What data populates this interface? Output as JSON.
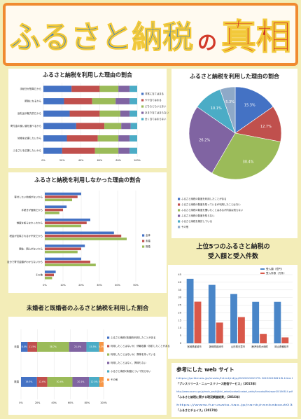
{
  "title": {
    "main": "ふるさと納税",
    "particle": "の",
    "emphasis": "真相"
  },
  "chart_data": [
    {
      "type": "stacked_barh",
      "title": "ふるさと納税を利用した理由の割合",
      "categories": [
        "手続きが簡単だから",
        "節税になるから",
        "返礼品が魅力的だから",
        "寄付金の使い道を選べるから",
        "地域を応援したいから",
        "ふるさとを応援したいから"
      ],
      "series": [
        {
          "name": "非常に当てはまる",
          "color": "#4472c4",
          "values": [
            30,
            22,
            28,
            35,
            25,
            20
          ]
        },
        {
          "name": "やや当てはまる",
          "color": "#c0504d",
          "values": [
            30,
            30,
            32,
            30,
            33,
            35
          ]
        },
        {
          "name": "どちらともいえない",
          "color": "#9bbb59",
          "values": [
            20,
            25,
            22,
            18,
            22,
            25
          ]
        },
        {
          "name": "あまり当てはまらない",
          "color": "#8064a2",
          "values": [
            12,
            15,
            10,
            10,
            12,
            12
          ]
        },
        {
          "name": "全く当てはまらない",
          "color": "#4bacc6",
          "values": [
            8,
            8,
            8,
            7,
            8,
            8
          ]
        }
      ],
      "xlim": [
        0,
        100
      ],
      "xticks": [
        {
          "value": 0,
          "label": "0%"
        },
        {
          "value": 20,
          "label": "20%"
        },
        {
          "value": 40,
          "label": "40%"
        },
        {
          "value": 60,
          "label": "60%"
        },
        {
          "value": 80,
          "label": "80%"
        },
        {
          "value": 100,
          "label": "100%"
        }
      ],
      "grid": true
    },
    {
      "type": "pie",
      "title": "ふるさと納税を利用した理由の割合",
      "categories": [
        "ふるさと納税の制度を利用したことがある",
        "ふるさと納税の制度を知っているが利用したことはない",
        "ふるさと納税の制度を聞いたことはあるが内容は知らない",
        "ふるさと納税の制度を知らない",
        "ふるさと納税を検討している",
        "その他"
      ],
      "values": [
        15.3,
        12.7,
        30.4,
        26.2,
        10.1,
        5.3
      ],
      "value_labels": [
        "15.3%",
        "12.7%",
        "30.4%",
        "26.2%",
        "10.1%",
        "5.3%"
      ],
      "colors": [
        "#4472c4",
        "#c0504d",
        "#9bbb59",
        "#8064a2",
        "#4bacc6",
        "#8ea9c8"
      ]
    },
    {
      "type": "grouped_barh",
      "title": "ふるさと納税を利用しなかった理由の割合",
      "categories": [
        "寄付したい地域がないから",
        "手続きが面倒だから",
        "制度を知らなかったから",
        "税金が控除されるか不安だから",
        "興味・関心がないから",
        "自分で寄付金額がわからないから",
        "その他"
      ],
      "series": [
        {
          "name": "全体",
          "color": "#4472c4",
          "values": [
            20,
            12,
            25,
            38,
            22,
            20,
            6
          ]
        },
        {
          "name": "未婚",
          "color": "#c0504d",
          "values": [
            18,
            10,
            23,
            42,
            20,
            25,
            5
          ]
        },
        {
          "name": "既婚",
          "color": "#9bbb59",
          "values": [
            15,
            8,
            20,
            45,
            18,
            28,
            4
          ]
        }
      ],
      "xlim": [
        0,
        50
      ],
      "xticks": [
        {
          "value": 0,
          "label": "0%"
        },
        {
          "value": 10,
          "label": "10%"
        },
        {
          "value": 20,
          "label": "20%"
        },
        {
          "value": 30,
          "label": "30%"
        },
        {
          "value": 40,
          "label": "40%"
        },
        {
          "value": 50,
          "label": "50%"
        }
      ],
      "grid": true
    },
    {
      "type": "bar",
      "title": "上位5つのふるさと納税の",
      "subtitle": "受入額と受入件数",
      "categories": [
        "宮崎県都城市",
        "静岡県焼津市",
        "山形県天童市",
        "鹿児島県大崎町",
        "岡山県備前市"
      ],
      "series": [
        {
          "name": "受入額（億円）",
          "color": "#4a86c8",
          "values": [
            42.3,
            38.3,
            32.3,
            27.2,
            27.2
          ]
        },
        {
          "name": "受入件数（万件）",
          "color": "#d9584a",
          "values": [
            27.3,
            13.6,
            17.2,
            6.1,
            3.9
          ]
        }
      ],
      "ylim": [
        0,
        45
      ],
      "yticks": [
        0,
        5,
        10,
        15,
        20,
        25,
        30,
        35,
        40,
        45
      ],
      "grid": true,
      "legend": "top-right"
    },
    {
      "type": "stacked_barh",
      "title": "未婚者と既婚者のふるさと納税を利用した割合",
      "categories": [
        "未婚",
        "既婚"
      ],
      "series": [
        {
          "name": "ふるさと納税の制度を利用したことがある",
          "color": "#4472c4",
          "values": [
            8.0,
            19.3
          ],
          "value_labels": [
            "8.0%",
            "19.3%"
          ]
        },
        {
          "name": "利用したことはないが、情報収集・検討したことがある",
          "color": "#c0504d",
          "values": [
            11.5,
            12.6
          ],
          "value_labels": [
            "11.5%",
            "12.6%"
          ]
        },
        {
          "name": "利用したことはないが、興味を持っている",
          "color": "#9bbb59",
          "values": [
            38.7,
            30.4
          ],
          "value_labels": [
            "38.7%",
            "30.4%"
          ]
        },
        {
          "name": "利用したことはなく、興味もない",
          "color": "#8064a2",
          "values": [
            21.0,
            20.1
          ],
          "value_labels": [
            "21.0%",
            "20.1%"
          ]
        },
        {
          "name": "ふるさと納税の制度について知らない",
          "color": "#4bacc6",
          "values": [
            15.5,
            12.5
          ],
          "value_labels": [
            "15.5%",
            "12.5%"
          ]
        },
        {
          "name": "その他",
          "color": "#f79646",
          "values": [
            5.3,
            5.1
          ],
          "value_labels": [
            "5.3%",
            "5.1%"
          ]
        }
      ],
      "xlim": [
        0,
        100
      ],
      "xticks": [
        {
          "value": 0,
          "label": "0%"
        },
        {
          "value": 20,
          "label": "20%"
        },
        {
          "value": 40,
          "label": "40%"
        },
        {
          "value": 60,
          "label": "60%"
        },
        {
          "value": 80,
          "label": "80%"
        },
        {
          "value": 100,
          "label": "100%"
        }
      ],
      "grid": true
    }
  ],
  "references": {
    "heading": "参考にした web サイト",
    "items": [
      {
        "url": "https://prtimes.jp/main/html/rd/p/000000079.000006618.html",
        "source": "「プレスリリース・ニュースリリース配信サービス」(2015年)"
      },
      {
        "url": "http://www.soumu.go.jp/main_sosiki/jichi_zeisei/czaisei/czaisei_seido/furusato/file/report20160614.pdf",
        "source": "「ふるさと納税に関する現況調査結果」(2016年)"
      },
      {
        "url": "https://www.furusato-tax.jp/rank/rankabout03",
        "source": "「ふるさとチョイス」(2017年)"
      }
    ]
  }
}
